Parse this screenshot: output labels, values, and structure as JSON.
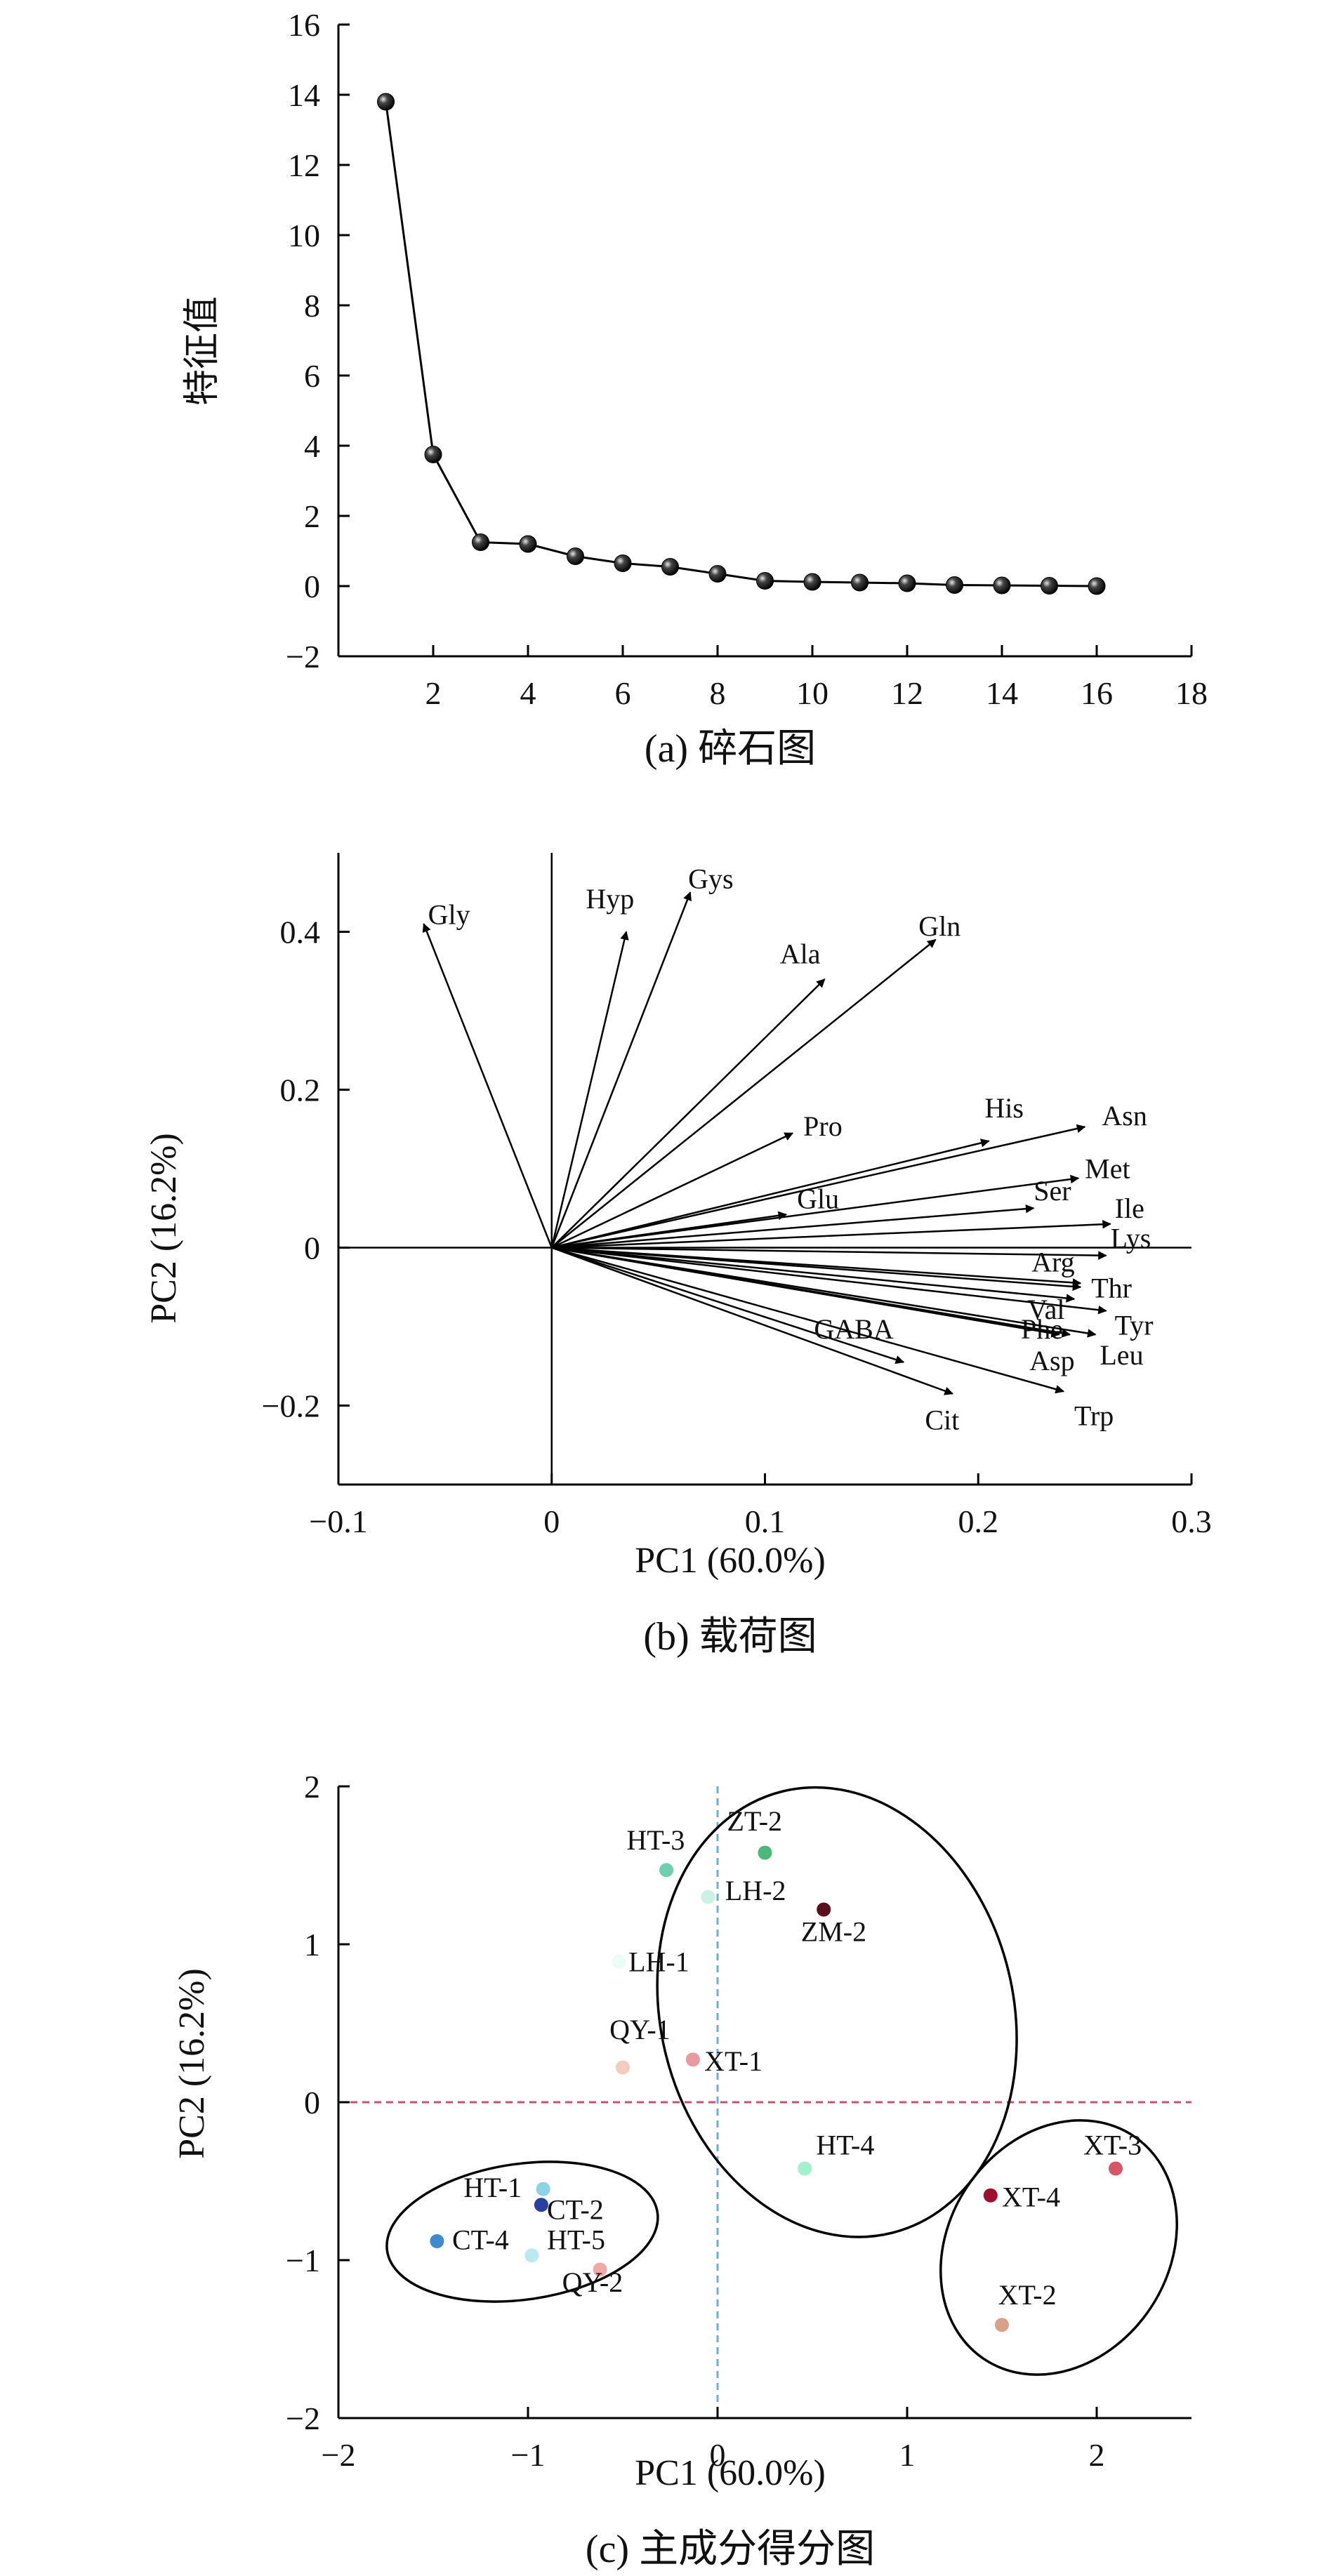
{
  "chart_data": [
    {
      "type": "line",
      "panel": "a",
      "caption": "(a) 碎石图",
      "ylabel": "特征值",
      "xlabel": "",
      "xlim": [
        0,
        18
      ],
      "ylim": [
        -2,
        16
      ],
      "xticks": [
        2,
        4,
        6,
        8,
        10,
        12,
        14,
        16,
        18
      ],
      "yticks": [
        -2,
        0,
        2,
        4,
        6,
        8,
        10,
        12,
        14,
        16
      ],
      "xtick_labels": [
        "2",
        "4",
        "6",
        "8",
        "10",
        "12",
        "14",
        "16",
        "18"
      ],
      "ytick_labels": [
        "−2",
        "0",
        "2",
        "4",
        "6",
        "8",
        "10",
        "12",
        "14",
        "16"
      ],
      "series": [
        {
          "name": "eigenvalue",
          "x": [
            1,
            2,
            3,
            4,
            5,
            6,
            7,
            8,
            9,
            10,
            11,
            12,
            13,
            14,
            15,
            16
          ],
          "values": [
            13.8,
            3.75,
            1.25,
            1.2,
            0.85,
            0.65,
            0.55,
            0.35,
            0.15,
            0.12,
            0.1,
            0.08,
            0.03,
            0.02,
            0.01,
            0.0
          ]
        }
      ]
    },
    {
      "type": "scatter",
      "subtype": "loading-vectors",
      "panel": "b",
      "caption": "(b) 载荷图",
      "xlabel": "PC1 (60.0%)",
      "ylabel": "PC2 (16.2%)",
      "xlim": [
        -0.1,
        0.3
      ],
      "ylim": [
        -0.3,
        0.5
      ],
      "xticks": [
        -0.1,
        0,
        0.1,
        0.2,
        0.3
      ],
      "yticks": [
        -0.2,
        0,
        0.2,
        0.4
      ],
      "xtick_labels": [
        "−0.1",
        "0",
        "0.1",
        "0.2",
        "0.3"
      ],
      "ytick_labels": [
        "−0.2",
        "0",
        "0.2",
        "0.4"
      ],
      "vectors": [
        {
          "name": "Gly",
          "x": -0.06,
          "y": 0.41,
          "lx": -0.058,
          "ly": 0.41
        },
        {
          "name": "Hyp",
          "x": 0.035,
          "y": 0.4,
          "lx": 0.016,
          "ly": 0.43
        },
        {
          "name": "Gys",
          "x": 0.065,
          "y": 0.45,
          "lx": 0.064,
          "ly": 0.455
        },
        {
          "name": "Ala",
          "x": 0.128,
          "y": 0.34,
          "lx": 0.107,
          "ly": 0.36
        },
        {
          "name": "Gln",
          "x": 0.18,
          "y": 0.39,
          "lx": 0.172,
          "ly": 0.395
        },
        {
          "name": "Pro",
          "x": 0.113,
          "y": 0.145,
          "lx": 0.118,
          "ly": 0.142
        },
        {
          "name": "His",
          "x": 0.205,
          "y": 0.135,
          "lx": 0.203,
          "ly": 0.165
        },
        {
          "name": "Asn",
          "x": 0.25,
          "y": 0.153,
          "lx": 0.258,
          "ly": 0.155
        },
        {
          "name": "Met",
          "x": 0.247,
          "y": 0.088,
          "lx": 0.25,
          "ly": 0.088
        },
        {
          "name": "Ser",
          "x": 0.226,
          "y": 0.05,
          "lx": 0.226,
          "ly": 0.06
        },
        {
          "name": "Ile",
          "x": 0.262,
          "y": 0.03,
          "lx": 0.264,
          "ly": 0.038
        },
        {
          "name": "Glu",
          "x": 0.11,
          "y": 0.042,
          "lx": 0.115,
          "ly": 0.05
        },
        {
          "name": "Lys",
          "x": 0.26,
          "y": -0.01,
          "lx": 0.262,
          "ly": 0.0
        },
        {
          "name": "Arg",
          "x": 0.248,
          "y": -0.045,
          "lx": 0.225,
          "ly": -0.03
        },
        {
          "name": "Thr",
          "x": 0.248,
          "y": -0.05,
          "lx": 0.253,
          "ly": -0.063
        },
        {
          "name": "Val",
          "x": 0.245,
          "y": -0.065,
          "lx": 0.223,
          "ly": -0.09
        },
        {
          "name": "Tyr",
          "x": 0.26,
          "y": -0.08,
          "lx": 0.264,
          "ly": -0.11
        },
        {
          "name": "Phe",
          "x": 0.243,
          "y": -0.11,
          "lx": 0.22,
          "ly": -0.115
        },
        {
          "name": "Leu",
          "x": 0.255,
          "y": -0.11,
          "lx": 0.257,
          "ly": -0.148
        },
        {
          "name": "GABA",
          "x": 0.165,
          "y": -0.145,
          "lx": 0.123,
          "ly": -0.115
        },
        {
          "name": "Asp",
          "x": 0.238,
          "y": -0.11,
          "lx": 0.224,
          "ly": -0.155
        },
        {
          "name": "Cit",
          "x": 0.188,
          "y": -0.185,
          "lx": 0.175,
          "ly": -0.23
        },
        {
          "name": "Trp",
          "x": 0.24,
          "y": -0.182,
          "lx": 0.245,
          "ly": -0.225
        }
      ]
    },
    {
      "type": "scatter",
      "panel": "c",
      "caption": "(c) 主成分得分图",
      "xlabel": "PC1 (60.0%)",
      "ylabel": "PC2 (16.2%)",
      "xlim": [
        -2,
        2.5
      ],
      "ylim": [
        -2,
        2
      ],
      "xticks": [
        -2,
        -1,
        0,
        1,
        2
      ],
      "yticks": [
        -2,
        -1,
        0,
        1,
        2
      ],
      "xtick_labels": [
        "−2",
        "−1",
        "0",
        "1",
        "2"
      ],
      "ytick_labels": [
        "−2",
        "−1",
        "0",
        "1",
        "2"
      ],
      "points": [
        {
          "name": "ZT-2",
          "x": 0.25,
          "y": 1.58,
          "color": "#4db87a",
          "lx": 0.05,
          "ly": 1.72
        },
        {
          "name": "HT-3",
          "x": -0.27,
          "y": 1.47,
          "color": "#6fcfae",
          "lx": -0.48,
          "ly": 1.6
        },
        {
          "name": "LH-2",
          "x": -0.05,
          "y": 1.3,
          "color": "#cdf2e4",
          "lx": 0.04,
          "ly": 1.28
        },
        {
          "name": "ZM-2",
          "x": 0.56,
          "y": 1.22,
          "color": "#5a0f1c",
          "lx": 0.44,
          "ly": 1.02
        },
        {
          "name": "LH-1",
          "x": -0.52,
          "y": 0.89,
          "color": "#ebfbf5",
          "lx": -0.47,
          "ly": 0.83
        },
        {
          "name": "QY-1",
          "x": -0.5,
          "y": 0.22,
          "color": "#f6cbbf",
          "lx": -0.57,
          "ly": 0.4
        },
        {
          "name": "XT-1",
          "x": -0.13,
          "y": 0.27,
          "color": "#e99a9e",
          "lx": -0.07,
          "ly": 0.2
        },
        {
          "name": "HT-4",
          "x": 0.46,
          "y": -0.42,
          "color": "#a3f0cc",
          "lx": 0.52,
          "ly": -0.33
        },
        {
          "name": "HT-1",
          "x": -0.92,
          "y": -0.55,
          "color": "#8dd3e3",
          "lx": -1.34,
          "ly": -0.6
        },
        {
          "name": "CT-2",
          "x": -0.93,
          "y": -0.65,
          "color": "#2a3f9e",
          "lx": -0.9,
          "ly": -0.74
        },
        {
          "name": "CT-4",
          "x": -1.48,
          "y": -0.88,
          "color": "#3f89cf",
          "lx": -1.4,
          "ly": -0.93
        },
        {
          "name": "HT-5",
          "x": -0.98,
          "y": -0.97,
          "color": "#bce8ef",
          "lx": -0.9,
          "ly": -0.93
        },
        {
          "name": "QY-2",
          "x": -0.62,
          "y": -1.06,
          "color": "#f1a9a6",
          "lx": -0.82,
          "ly": -1.2
        },
        {
          "name": "XT-3",
          "x": 2.1,
          "y": -0.42,
          "color": "#d45766",
          "lx": 1.93,
          "ly": -0.33
        },
        {
          "name": "XT-4",
          "x": 1.44,
          "y": -0.59,
          "color": "#a0102c",
          "lx": 1.5,
          "ly": -0.66
        },
        {
          "name": "XT-2",
          "x": 1.5,
          "y": -1.41,
          "color": "#d9a08a",
          "lx": 1.48,
          "ly": -1.28
        }
      ],
      "ellipses": [
        {
          "cx": 0.63,
          "cy": 0.57,
          "rx": 0.93,
          "ry": 1.44,
          "angle": -14
        },
        {
          "cx": -1.03,
          "cy": -0.82,
          "rx": 0.72,
          "ry": 0.43,
          "angle": -8
        },
        {
          "cx": 1.8,
          "cy": -0.92,
          "rx": 0.58,
          "ry": 0.85,
          "angle": 34
        }
      ],
      "refline_h": {
        "y": 0,
        "color": "#c9536e"
      },
      "refline_v": {
        "x": 0,
        "color": "#6aaedd"
      }
    }
  ]
}
